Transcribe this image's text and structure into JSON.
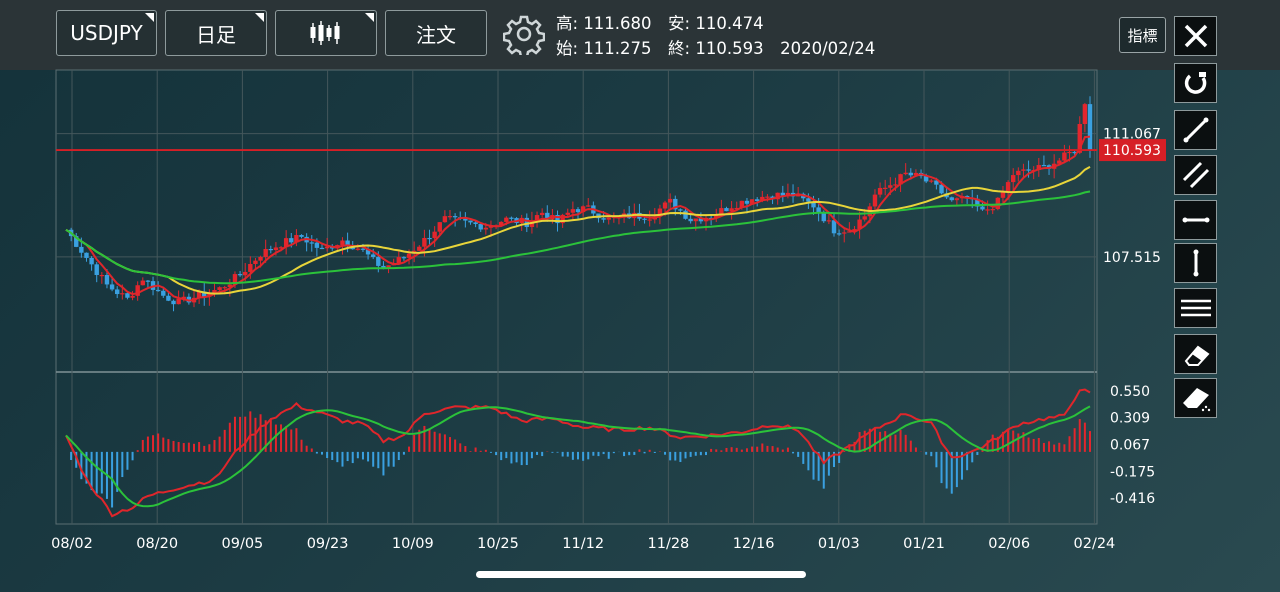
{
  "toolbar": {
    "symbol_label": "USDJPY",
    "timeframe_label": "日足",
    "indicator_label": "指標"
  },
  "quote": {
    "high_label": "高:",
    "high": "111.680",
    "low_label": "安:",
    "low": "110.474",
    "open_label": "始:",
    "open": "111.275",
    "close_label": "終:",
    "close": "110.593",
    "date": "2020/02/24"
  },
  "order_label": "注文",
  "icons": {
    "chart_type": "candlestick-icon",
    "settings": "gear-icon",
    "close": "close-icon",
    "magnet": "magnet-icon",
    "trendline": "trendline-icon",
    "parallel": "parallel-lines-icon",
    "horizontal": "horizontal-line-icon",
    "vertical": "vertical-line-icon",
    "fibonacci": "multi-line-icon",
    "eraser": "eraser-icon",
    "eraser_all": "eraser-all-icon"
  },
  "colors": {
    "up": "#e3262d",
    "down": "#3aa0e0",
    "ma_short": "#e0262b",
    "ma_mid": "#e8d53a",
    "ma_long": "#2bc23a",
    "price_line": "#d61f26"
  },
  "chart_data": {
    "type": "candlestick",
    "symbol": "USDJPY",
    "x_tick_labels": [
      "08/02",
      "08/20",
      "09/05",
      "09/23",
      "10/09",
      "10/25",
      "11/12",
      "11/28",
      "12/16",
      "01/03",
      "01/21",
      "02/06",
      "02/24"
    ],
    "price_axis_labels": [
      "111.067",
      "107.515"
    ],
    "price_axis_values": [
      111.067,
      107.515
    ],
    "current_price_label": "110.593",
    "current_price": 110.593,
    "ylim": [
      104.2,
      112.9
    ],
    "macd_axis_labels": [
      "0.550",
      "0.309",
      "0.067",
      "-0.175",
      "-0.416"
    ],
    "macd_axis_values": [
      0.55,
      0.309,
      0.067,
      -0.175,
      -0.416
    ],
    "macd_ylim": [
      -0.65,
      0.72
    ],
    "price_waypoints": [
      [
        0,
        108.3
      ],
      [
        4,
        107.5
      ],
      [
        8,
        106.7
      ],
      [
        12,
        106.3
      ],
      [
        15,
        106.9
      ],
      [
        19,
        106.4
      ],
      [
        22,
        106.2
      ],
      [
        26,
        106.4
      ],
      [
        30,
        106.6
      ],
      [
        34,
        107.0
      ],
      [
        38,
        107.6
      ],
      [
        42,
        107.9
      ],
      [
        46,
        108.1
      ],
      [
        50,
        107.7
      ],
      [
        54,
        108.0
      ],
      [
        58,
        107.7
      ],
      [
        60,
        107.4
      ],
      [
        62,
        107.2
      ],
      [
        66,
        107.5
      ],
      [
        70,
        108.0
      ],
      [
        74,
        108.6
      ],
      [
        78,
        108.5
      ],
      [
        82,
        108.4
      ],
      [
        86,
        108.6
      ],
      [
        90,
        108.5
      ],
      [
        93,
        108.8
      ],
      [
        96,
        108.5
      ],
      [
        99,
        108.9
      ],
      [
        102,
        108.9
      ],
      [
        106,
        108.6
      ],
      [
        110,
        108.7
      ],
      [
        114,
        108.7
      ],
      [
        118,
        109.1
      ],
      [
        122,
        108.6
      ],
      [
        126,
        108.7
      ],
      [
        130,
        109.0
      ],
      [
        134,
        109.2
      ],
      [
        138,
        109.3
      ],
      [
        142,
        109.3
      ],
      [
        146,
        109.0
      ],
      [
        150,
        108.3
      ],
      [
        153,
        108.3
      ],
      [
        156,
        108.7
      ],
      [
        158,
        109.3
      ],
      [
        161,
        109.6
      ],
      [
        164,
        109.9
      ],
      [
        167,
        109.8
      ],
      [
        170,
        109.5
      ],
      [
        173,
        109.1
      ],
      [
        176,
        109.2
      ],
      [
        179,
        108.8
      ],
      [
        182,
        109.1
      ],
      [
        185,
        109.9
      ],
      [
        188,
        110.0
      ],
      [
        191,
        110.1
      ],
      [
        194,
        110.3
      ],
      [
        197,
        110.6
      ],
      [
        199,
        112.0
      ],
      [
        200,
        110.593
      ]
    ],
    "macd_waypoints": [
      [
        0,
        0.15
      ],
      [
        4,
        -0.25
      ],
      [
        9,
        -0.56
      ],
      [
        13,
        -0.5
      ],
      [
        16,
        -0.4
      ],
      [
        22,
        -0.32
      ],
      [
        29,
        -0.25
      ],
      [
        34,
        0.05
      ],
      [
        40,
        0.3
      ],
      [
        45,
        0.42
      ],
      [
        49,
        0.36
      ],
      [
        54,
        0.28
      ],
      [
        58,
        0.25
      ],
      [
        62,
        0.1
      ],
      [
        66,
        0.15
      ],
      [
        70,
        0.35
      ],
      [
        76,
        0.4
      ],
      [
        83,
        0.4
      ],
      [
        89,
        0.28
      ],
      [
        95,
        0.3
      ],
      [
        101,
        0.22
      ],
      [
        108,
        0.2
      ],
      [
        114,
        0.22
      ],
      [
        120,
        0.13
      ],
      [
        126,
        0.15
      ],
      [
        132,
        0.18
      ],
      [
        138,
        0.25
      ],
      [
        143,
        0.2
      ],
      [
        148,
        -0.1
      ],
      [
        153,
        0.05
      ],
      [
        158,
        0.2
      ],
      [
        164,
        0.35
      ],
      [
        169,
        0.25
      ],
      [
        173,
        -0.05
      ],
      [
        177,
        0.0
      ],
      [
        181,
        0.1
      ],
      [
        186,
        0.25
      ],
      [
        191,
        0.3
      ],
      [
        195,
        0.32
      ],
      [
        198,
        0.57
      ],
      [
        200,
        0.52
      ]
    ],
    "series": [
      {
        "name": "",
        "color": "#e0262b",
        "period": 5
      },
      {
        "name": "",
        "color": "#e8d53a",
        "period": 21
      },
      {
        "name": "",
        "color": "#2bc23a",
        "period": 75
      }
    ]
  }
}
